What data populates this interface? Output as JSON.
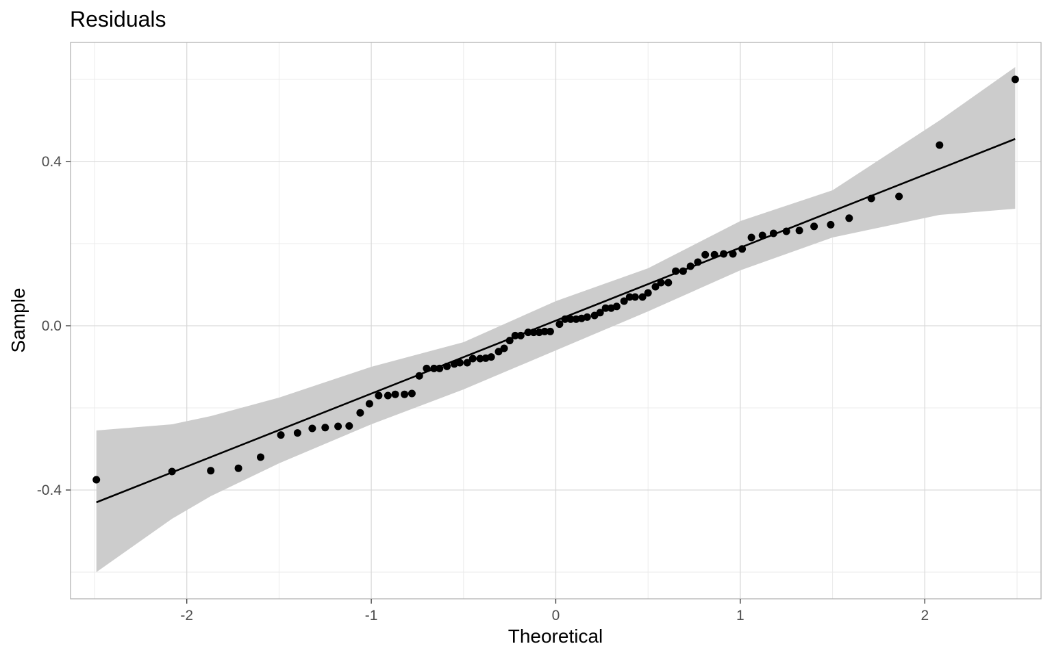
{
  "chart_data": {
    "type": "scatter",
    "title": "Residuals",
    "xlabel": "Theoretical",
    "ylabel": "Sample",
    "xlim": [
      -2.63,
      2.63
    ],
    "ylim": [
      -0.665,
      0.69
    ],
    "x_ticks": [
      -2,
      -1,
      0,
      1,
      2
    ],
    "x_tick_labels": [
      "-2",
      "-1",
      "0",
      "1",
      "2"
    ],
    "y_ticks": [
      -0.4,
      0.0,
      0.4
    ],
    "y_tick_labels": [
      "-0.4",
      "0.0",
      "0.4"
    ],
    "grid": true,
    "legend": "none",
    "colors": {
      "points": "#000000",
      "line": "#000000",
      "band": "#cccccc",
      "grid_major": "#d9d9d9",
      "grid_minor": "#ebebeb",
      "panel_border": "#b3b3b3"
    },
    "reference_line": {
      "x": [
        -2.49,
        2.49
      ],
      "y": [
        -0.43,
        0.455
      ]
    },
    "confidence_band": {
      "x": [
        -2.49,
        -2.08,
        -1.87,
        -1.5,
        -1.0,
        -0.5,
        0.0,
        0.5,
        1.0,
        1.5,
        2.08,
        2.49
      ],
      "lower": [
        -0.6,
        -0.47,
        -0.415,
        -0.335,
        -0.24,
        -0.155,
        -0.06,
        0.035,
        0.135,
        0.215,
        0.27,
        0.285
      ],
      "upper": [
        -0.255,
        -0.24,
        -0.22,
        -0.175,
        -0.1,
        -0.04,
        0.06,
        0.14,
        0.255,
        0.33,
        0.5,
        0.63
      ]
    },
    "points": {
      "x": [
        -2.49,
        -2.08,
        -1.87,
        -1.72,
        -1.6,
        -1.49,
        -1.4,
        -1.32,
        -1.25,
        -1.18,
        -1.12,
        -1.06,
        -1.01,
        -0.96,
        -0.91,
        -0.87,
        -0.82,
        -0.78,
        -0.74,
        -0.7,
        -0.66,
        -0.63,
        -0.59,
        -0.55,
        -0.52,
        -0.48,
        -0.45,
        -0.41,
        -0.38,
        -0.35,
        -0.31,
        -0.28,
        -0.25,
        -0.22,
        -0.19,
        -0.15,
        -0.12,
        -0.09,
        -0.06,
        -0.03,
        0.02,
        0.05,
        0.08,
        0.11,
        0.14,
        0.17,
        0.21,
        0.24,
        0.27,
        0.3,
        0.33,
        0.37,
        0.4,
        0.43,
        0.47,
        0.5,
        0.54,
        0.57,
        0.61,
        0.65,
        0.69,
        0.73,
        0.77,
        0.81,
        0.86,
        0.91,
        0.96,
        1.01,
        1.06,
        1.12,
        1.18,
        1.25,
        1.32,
        1.4,
        1.49,
        1.59,
        1.71,
        1.86,
        2.08,
        2.49
      ],
      "y": [
        -0.375,
        -0.355,
        -0.353,
        -0.347,
        -0.32,
        -0.266,
        -0.261,
        -0.25,
        -0.248,
        -0.245,
        -0.244,
        -0.212,
        -0.19,
        -0.17,
        -0.17,
        -0.167,
        -0.167,
        -0.165,
        -0.122,
        -0.104,
        -0.104,
        -0.104,
        -0.099,
        -0.093,
        -0.09,
        -0.09,
        -0.08,
        -0.08,
        -0.079,
        -0.076,
        -0.063,
        -0.055,
        -0.036,
        -0.024,
        -0.024,
        -0.016,
        -0.016,
        -0.016,
        -0.014,
        -0.014,
        0.004,
        0.016,
        0.016,
        0.016,
        0.018,
        0.021,
        0.025,
        0.032,
        0.043,
        0.043,
        0.047,
        0.06,
        0.07,
        0.07,
        0.07,
        0.08,
        0.095,
        0.105,
        0.105,
        0.133,
        0.133,
        0.145,
        0.155,
        0.173,
        0.173,
        0.175,
        0.175,
        0.187,
        0.215,
        0.22,
        0.225,
        0.23,
        0.232,
        0.242,
        0.246,
        0.262,
        0.31,
        0.315,
        0.44,
        0.6
      ]
    }
  }
}
